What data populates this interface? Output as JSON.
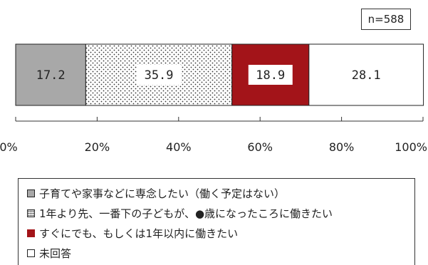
{
  "chart_data": {
    "type": "bar",
    "orientation": "horizontal-stacked",
    "sample_label": "n=588",
    "segments": [
      {
        "label": "子育てや家事などに専念したい（働く予定はない）",
        "value": 17.2,
        "value_label": "17.2",
        "fill": "#a8a8a8",
        "pattern": "solid"
      },
      {
        "label": "1年より先、一番下の子どもが、●歳になったころに働きたい",
        "value": 35.9,
        "value_label": "35.9",
        "fill": "#ffffff",
        "pattern": "dots"
      },
      {
        "label": "すぐにでも、もしくは1年以内に働きたい",
        "value": 18.9,
        "value_label": "18.9",
        "fill": "#a31419",
        "pattern": "solid"
      },
      {
        "label": "未回答",
        "value": 28.1,
        "value_label": "28.1",
        "fill": "#ffffff",
        "pattern": "solid"
      }
    ],
    "xlim": [
      0,
      100
    ],
    "x_ticks": [
      0,
      20,
      40,
      60,
      80,
      100
    ],
    "x_tick_labels": [
      "0%",
      "20%",
      "40%",
      "60%",
      "80%",
      "100%"
    ],
    "legend_placement": "bottom"
  }
}
